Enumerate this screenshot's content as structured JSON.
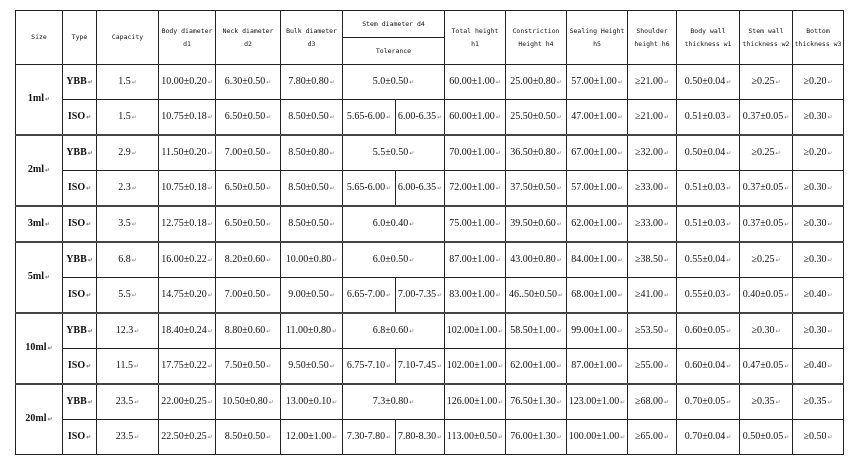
{
  "headers": {
    "size": "Size",
    "type": "Type",
    "capacity": "Capacity",
    "d1": "Body diameter d1",
    "d2": "Neck diameter d2",
    "d3": "Bulk diameter d3",
    "d4": "Stem diameter d4",
    "tolerance": "Tolerance",
    "h1": "Total height h1",
    "h4": "Constriction Height h4",
    "h5": "Sealing Height h5",
    "h6": "Shoulder height h6",
    "w1": "Body wall thickness w1",
    "w2": "Stem wall thickness w2",
    "w3": "Bottom thickness w3"
  },
  "groups": [
    {
      "size": "1ml",
      "rows": [
        {
          "type": "YBB",
          "capacity": "1.5",
          "d1": "10.00±0.20",
          "d2": "6.30±0.50",
          "d3": "7.80±0.80",
          "d4": [
            "5.0±0.50"
          ],
          "h1": "60.00±1.00",
          "h4": "25.00±0.80",
          "h5": "57.00±1.00",
          "h6": "≥21.00",
          "w1": "0.50±0.04",
          "w2": "≥0.25",
          "w3": "≥0.20"
        },
        {
          "type": "ISO",
          "capacity": "1.5",
          "d1": "10.75±0.18",
          "d2": "6.50±0.50",
          "d3": "8.50±0.50",
          "d4": [
            "5.65-6.00",
            "6.00-6.35"
          ],
          "h1": "60.00±1.00",
          "h4": "25.50±0.50",
          "h5": "47.00±1.00",
          "h6": "≥21.00",
          "w1": "0.51±0.03",
          "w2": "0.37±0.05",
          "w3": "≥0.30"
        }
      ]
    },
    {
      "size": "2ml",
      "rows": [
        {
          "type": "YBB",
          "capacity": "2.9",
          "d1": "11.50±0.20",
          "d2": "7.00±0.50",
          "d3": "8.50±0.80",
          "d4": [
            "5.5±0.50"
          ],
          "h1": "70.00±1.00",
          "h4": "36.50±0.80",
          "h5": "67.00±1.00",
          "h6": "≥32.00",
          "w1": "0.50±0.04",
          "w2": "≥0.25",
          "w3": "≥0.20"
        },
        {
          "type": "ISO",
          "capacity": "2.3",
          "d1": "10.75±0.18",
          "d2": "6.50±0.50",
          "d3": "8.50±0.50",
          "d4": [
            "5.65-6.00",
            "6.00-6.35"
          ],
          "h1": "72.00±1.00",
          "h4": "37.50±0.50",
          "h5": "57.00±1.00",
          "h6": "≥33.00",
          "w1": "0.51±0.03",
          "w2": "0.37±0.05",
          "w3": "≥0.30"
        }
      ]
    },
    {
      "size": "3ml",
      "rows": [
        {
          "type": "ISO",
          "capacity": "3.5",
          "d1": "12.75±0.18",
          "d2": "6.50±0.50",
          "d3": "8.50±0.50",
          "d4": [
            "6.0±0.40"
          ],
          "h1": "75.00±1.00",
          "h4": "39.50±0.60",
          "h5": "62.00±1.00",
          "h6": "≥33.00",
          "w1": "0.51±0.03",
          "w2": "0.37±0.05",
          "w3": "≥0.30"
        }
      ]
    },
    {
      "size": "5ml",
      "rows": [
        {
          "type": "YBB",
          "capacity": "6.8",
          "d1": "16.00±0.22",
          "d2": "8.20±0.60",
          "d3": "10.00±0.80",
          "d4": [
            "6.0±0.50"
          ],
          "h1": "87.00±1.00",
          "h4": "43.00±0.80",
          "h5": "84.00±1.00",
          "h6": "≥38.50",
          "w1": "0.55±0.04",
          "w2": "≥0.25",
          "w3": "≥0.30"
        },
        {
          "type": "ISO",
          "capacity": "5.5",
          "d1": "14.75±0.20",
          "d2": "7.00±0.50",
          "d3": "9.00±0.50",
          "d4": [
            "6.65-7.00",
            "7.00-7.35"
          ],
          "h1": "83.00±1.00",
          "h4": "46..50±0.50",
          "h5": "68.00±1.00",
          "h6": "≥41.00",
          "w1": "0.55±0.03",
          "w2": "0.40±0.05",
          "w3": "≥0.40"
        }
      ]
    },
    {
      "size": "10ml",
      "rows": [
        {
          "type": "YBB",
          "capacity": "12.3",
          "d1": "18.40±0.24",
          "d2": "8.80±0.60",
          "d3": "11.00±0.80",
          "d4": [
            "6.8±0.60"
          ],
          "h1": "102.00±1.00",
          "h4": "58.50±1.00",
          "h5": "99.00±1.00",
          "h6": "≥53.50",
          "w1": "0.60±0.05",
          "w2": "≥0.30",
          "w3": "≥0.30"
        },
        {
          "type": "ISO",
          "capacity": "11.5",
          "d1": "17.75±0.22",
          "d2": "7.50±0.50",
          "d3": "9.50±0.50",
          "d4": [
            "6.75-7.10",
            "7.10-7.45"
          ],
          "h1": "102.00±1.00",
          "h4": "62.00±1.00",
          "h5": "87.00±1.00",
          "h6": "≥55.00",
          "w1": "0.60±0.04",
          "w2": "0.47±0.05",
          "w3": "≥0.40"
        }
      ]
    },
    {
      "size": "20ml",
      "rows": [
        {
          "type": "YBB",
          "capacity": "23.5",
          "d1": "22.00±0.25",
          "d2": "10.50±0.80",
          "d3": "13.00±0.10",
          "d4": [
            "7.3±0.80"
          ],
          "h1": "126.00±1.00",
          "h4": "76.50±1.30",
          "h5": "123.00±1.00",
          "h6": "≥68.00",
          "w1": "0.70±0.05",
          "w2": "≥0.35",
          "w3": "≥0.35"
        },
        {
          "type": "ISO",
          "capacity": "23.5",
          "d1": "22.50±0.25",
          "d2": "8.50±0.50",
          "d3": "12.00±1.00",
          "d4": [
            "7.30-7.80",
            "7.80-8.30"
          ],
          "h1": "113.00±0.50",
          "h4": "76.00±1.30",
          "h5": "100.00±1.00",
          "h6": "≥65.00",
          "w1": "0.70±0.04",
          "w2": "0.50±0.05",
          "w3": "≥0.50"
        }
      ]
    }
  ]
}
